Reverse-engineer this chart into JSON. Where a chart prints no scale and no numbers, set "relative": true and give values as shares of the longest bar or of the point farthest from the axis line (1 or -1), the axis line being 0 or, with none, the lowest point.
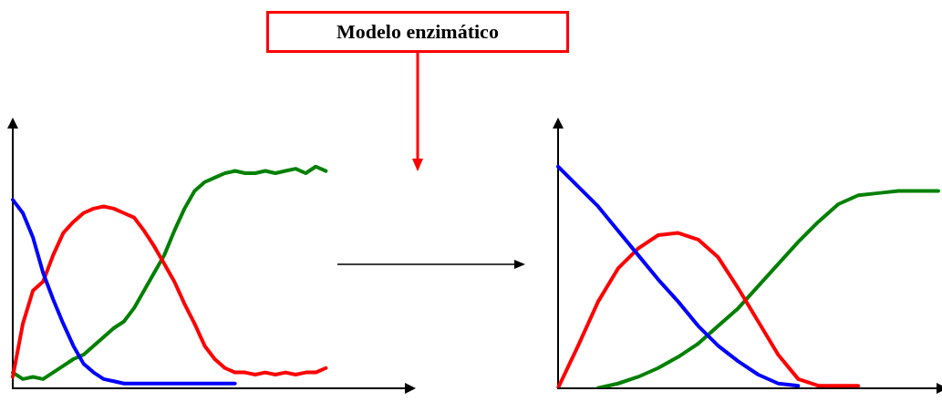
{
  "chart_data": [
    {
      "type": "line",
      "relative": true,
      "grid": false,
      "marker": "none",
      "categories": [
        null,
        null,
        null,
        null,
        null,
        null,
        null,
        null,
        null,
        null,
        null,
        null,
        null,
        null,
        null,
        null,
        null,
        null,
        null,
        null,
        null,
        null,
        null,
        null,
        null,
        null,
        null,
        null,
        null,
        null,
        null,
        null,
        null,
        null,
        null,
        null,
        null,
        null,
        null,
        null
      ],
      "series": [
        {
          "color": "#0000ff",
          "values": [
            0.85,
            0.79,
            0.68,
            0.52,
            0.4,
            0.29,
            0.19,
            0.11,
            0.07,
            0.04,
            0.03,
            0.02,
            0.02,
            0.02,
            0.02,
            0.02,
            0.02,
            0.02,
            0.02,
            0.02,
            0.02,
            0.02,
            0.02,
            null,
            null,
            null,
            null,
            null,
            null,
            null,
            null,
            null,
            null,
            null,
            null,
            null,
            null,
            null,
            null,
            null
          ]
        },
        {
          "color": "#ff0000",
          "values": [
            0.05,
            0.29,
            0.44,
            0.48,
            0.6,
            0.7,
            0.75,
            0.79,
            0.81,
            0.82,
            0.81,
            0.79,
            0.77,
            0.71,
            0.64,
            0.56,
            0.48,
            0.38,
            0.29,
            0.19,
            0.13,
            0.09,
            0.07,
            0.07,
            0.06,
            0.07,
            0.06,
            0.07,
            0.06,
            0.07,
            0.07,
            0.09,
            null,
            null,
            null,
            null,
            null,
            null,
            null,
            null
          ]
        },
        {
          "color": "#008000",
          "values": [
            0.07,
            0.04,
            0.05,
            0.04,
            0.07,
            0.1,
            0.13,
            0.15,
            0.19,
            0.23,
            0.27,
            0.3,
            0.36,
            0.44,
            0.52,
            0.6,
            0.71,
            0.81,
            0.89,
            0.93,
            0.95,
            0.97,
            0.98,
            0.97,
            0.97,
            0.98,
            0.97,
            0.98,
            0.99,
            0.97,
            1.0,
            0.98,
            null,
            null,
            null,
            null,
            null,
            null,
            null,
            null
          ]
        }
      ]
    },
    {
      "type": "line",
      "relative": true,
      "grid": false,
      "marker": "none",
      "categories": [
        null,
        null,
        null,
        null,
        null,
        null,
        null,
        null,
        null,
        null,
        null,
        null,
        null,
        null,
        null,
        null,
        null,
        null,
        null,
        null
      ],
      "series": [
        {
          "color": "#0000ff",
          "values": [
            1.0,
            0.91,
            0.82,
            0.71,
            0.6,
            0.49,
            0.39,
            0.28,
            0.19,
            0.12,
            0.06,
            0.02,
            0.01,
            null,
            null,
            null,
            null,
            null,
            null,
            null
          ]
        },
        {
          "color": "#ff0000",
          "values": [
            0,
            0.19,
            0.39,
            0.54,
            0.63,
            0.69,
            0.7,
            0.67,
            0.59,
            0.45,
            0.3,
            0.15,
            0.04,
            0.01,
            0.01,
            0.01,
            null,
            null,
            null,
            null
          ]
        },
        {
          "color": "#008000",
          "values": [
            null,
            null,
            0,
            0.02,
            0.05,
            0.09,
            0.14,
            0.2,
            0.28,
            0.36,
            0.46,
            0.56,
            0.66,
            0.75,
            0.83,
            0.87,
            0.88,
            0.89,
            0.89,
            0.89
          ]
        }
      ]
    },
    {
      "type": "other",
      "title": "Modelo enzimático"
    }
  ]
}
